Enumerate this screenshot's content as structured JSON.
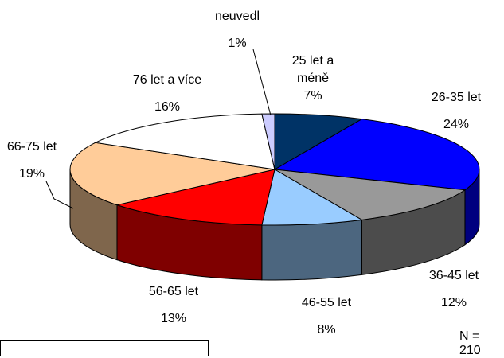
{
  "chart_data": {
    "type": "pie",
    "categories": [
      "25 let a méně",
      "26-35 let",
      "36-45 let",
      "46-55 let",
      "56-65 let",
      "66-75 let",
      "76 let a více",
      "neuvedl"
    ],
    "values": [
      7,
      24,
      12,
      8,
      13,
      19,
      16,
      1
    ],
    "value_labels": [
      "7%",
      "24%",
      "12%",
      "8%",
      "13%",
      "19%",
      "16%",
      "1%"
    ],
    "colors": [
      "#003366",
      "#0000ff",
      "#999999",
      "#99ccff",
      "#ff0000",
      "#ffcc99",
      "#ffffff",
      "#ccccff"
    ],
    "annotation": "N = 210"
  }
}
